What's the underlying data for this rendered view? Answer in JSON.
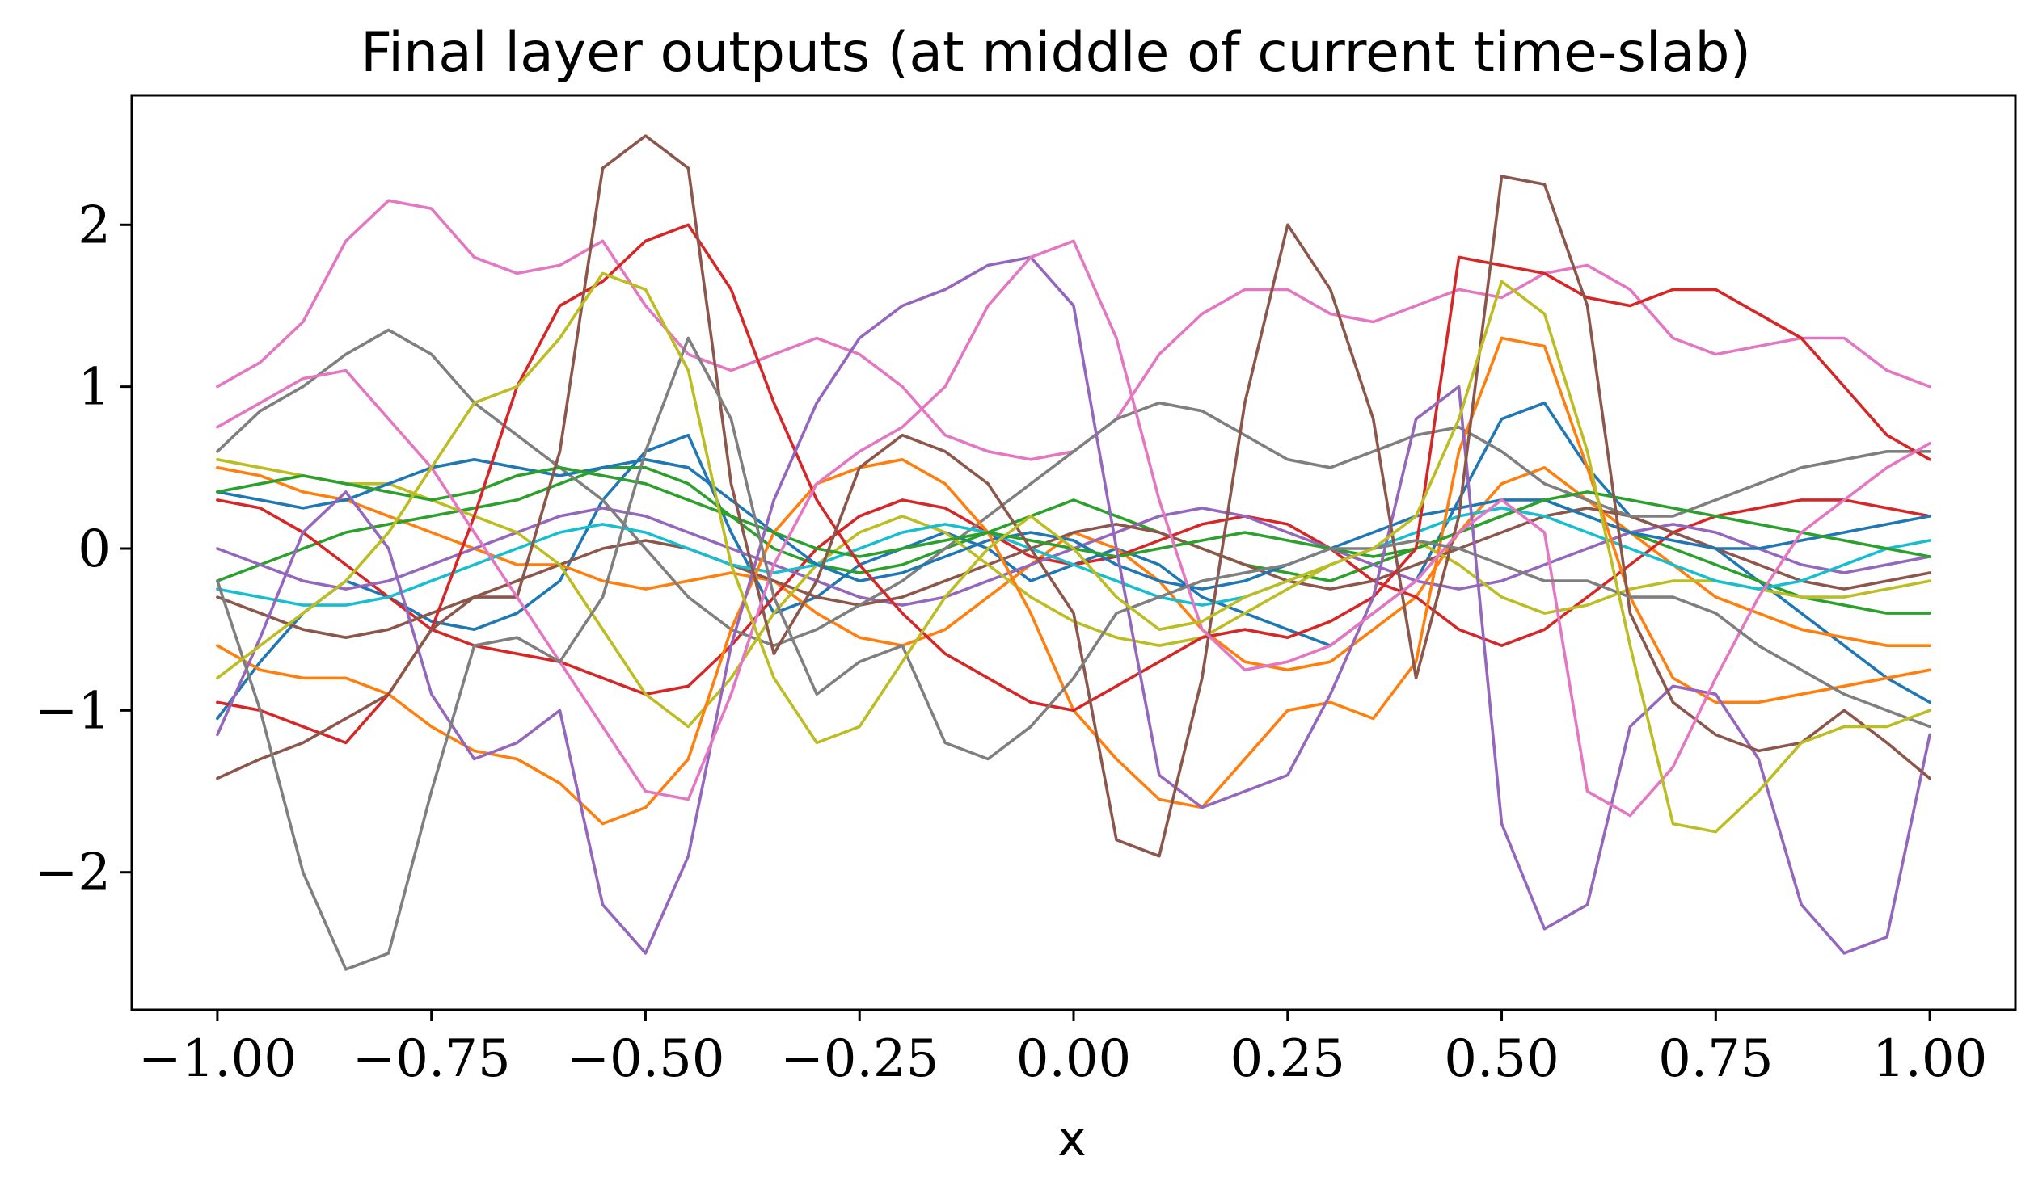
{
  "chart_data": {
    "type": "line",
    "title": "Final layer outputs (at middle of current time-slab)",
    "xlabel": "x",
    "ylabel": "",
    "xlim": [
      -1.1,
      1.1
    ],
    "ylim": [
      -2.85,
      2.8
    ],
    "xticks": [
      -1.0,
      -0.75,
      -0.5,
      -0.25,
      0.0,
      0.25,
      0.5,
      0.75,
      1.0
    ],
    "xtick_labels": [
      "−1.00",
      "−0.75",
      "−0.50",
      "−0.25",
      "0.00",
      "0.25",
      "0.50",
      "0.75",
      "1.00"
    ],
    "yticks": [
      -2,
      -1,
      0,
      1,
      2
    ],
    "ytick_labels": [
      "−2",
      "−1",
      "0",
      "1",
      "2"
    ],
    "grid": false,
    "legend": "none",
    "palette": [
      "#1f77b4",
      "#ff7f0e",
      "#2ca02c",
      "#d62728",
      "#9467bd",
      "#8c564b",
      "#e377c2",
      "#7f7f7f",
      "#bcbd22",
      "#17becf"
    ],
    "x": [
      -1.0,
      -0.95,
      -0.9,
      -0.85,
      -0.8,
      -0.75,
      -0.7,
      -0.65,
      -0.6,
      -0.55,
      -0.5,
      -0.45,
      -0.4,
      -0.35,
      -0.3,
      -0.25,
      -0.2,
      -0.15,
      -0.1,
      -0.05,
      0.0,
      0.05,
      0.1,
      0.15,
      0.2,
      0.25,
      0.3,
      0.35,
      0.4,
      0.45,
      0.5,
      0.55,
      0.6,
      0.65,
      0.7,
      0.75,
      0.8,
      0.85,
      0.9,
      0.95,
      1.0
    ],
    "series": [
      {
        "values": [
          -1.05,
          -0.7,
          -0.4,
          -0.2,
          -0.3,
          -0.45,
          -0.5,
          -0.4,
          -0.2,
          0.3,
          0.6,
          0.7,
          0.1,
          -0.4,
          -0.3,
          -0.1,
          0.0,
          0.1,
          0.0,
          -0.2,
          -0.1,
          0.0,
          -0.1,
          -0.3,
          -0.4,
          -0.5,
          -0.6,
          -0.4,
          -0.2,
          0.3,
          0.8,
          0.9,
          0.5,
          0.2,
          0.1,
          0.0,
          -0.2,
          -0.4,
          -0.6,
          -0.8,
          -0.95
        ]
      },
      {
        "values": [
          0.5,
          0.45,
          0.35,
          0.3,
          0.2,
          0.1,
          0.0,
          -0.1,
          -0.1,
          -0.2,
          -0.25,
          -0.2,
          -0.15,
          -0.2,
          -0.4,
          -0.55,
          -0.6,
          -0.5,
          -0.3,
          -0.1,
          0.1,
          0.0,
          -0.2,
          -0.5,
          -0.7,
          -0.75,
          -0.7,
          -0.5,
          -0.3,
          0.1,
          0.4,
          0.5,
          0.3,
          0.1,
          -0.1,
          -0.3,
          -0.4,
          -0.5,
          -0.55,
          -0.6,
          -0.6
        ]
      },
      {
        "values": [
          -0.2,
          -0.1,
          0.0,
          0.1,
          0.15,
          0.2,
          0.25,
          0.3,
          0.4,
          0.5,
          0.5,
          0.4,
          0.2,
          0.0,
          -0.1,
          -0.15,
          -0.1,
          0.0,
          0.1,
          0.2,
          0.3,
          0.2,
          0.1,
          0.0,
          -0.1,
          -0.15,
          -0.2,
          -0.1,
          0.0,
          0.1,
          0.2,
          0.3,
          0.2,
          0.1,
          0.0,
          -0.1,
          -0.2,
          -0.3,
          -0.35,
          -0.4,
          -0.4
        ]
      },
      {
        "values": [
          0.3,
          0.25,
          0.1,
          -0.1,
          -0.3,
          -0.5,
          -0.6,
          -0.65,
          -0.7,
          -0.8,
          -0.9,
          -0.85,
          -0.6,
          -0.3,
          0.0,
          0.2,
          0.3,
          0.25,
          0.1,
          -0.05,
          -0.1,
          -0.05,
          0.05,
          0.15,
          0.2,
          0.15,
          0.0,
          -0.2,
          -0.3,
          -0.5,
          -0.6,
          -0.5,
          -0.3,
          -0.1,
          0.1,
          0.2,
          0.25,
          0.3,
          0.3,
          0.25,
          0.2
        ]
      },
      {
        "values": [
          0.0,
          -0.1,
          -0.2,
          -0.25,
          -0.2,
          -0.1,
          0.0,
          0.1,
          0.2,
          0.25,
          0.2,
          0.1,
          0.0,
          -0.1,
          -0.2,
          -0.3,
          -0.35,
          -0.3,
          -0.2,
          -0.1,
          0.0,
          0.1,
          0.2,
          0.25,
          0.2,
          0.1,
          0.0,
          -0.1,
          -0.2,
          -0.25,
          -0.2,
          -0.1,
          0.0,
          0.1,
          0.15,
          0.1,
          0.0,
          -0.1,
          -0.15,
          -0.1,
          -0.05
        ]
      },
      {
        "values": [
          -0.3,
          -0.4,
          -0.5,
          -0.55,
          -0.5,
          -0.4,
          -0.3,
          -0.2,
          -0.1,
          0.0,
          0.05,
          0.0,
          -0.1,
          -0.2,
          -0.3,
          -0.35,
          -0.3,
          -0.2,
          -0.1,
          0.0,
          0.1,
          0.15,
          0.1,
          0.0,
          -0.1,
          -0.2,
          -0.25,
          -0.2,
          -0.1,
          0.0,
          0.1,
          0.2,
          0.25,
          0.2,
          0.1,
          0.0,
          -0.1,
          -0.2,
          -0.25,
          -0.2,
          -0.15
        ]
      },
      {
        "values": [
          1.0,
          1.15,
          1.4,
          1.9,
          2.15,
          2.1,
          1.8,
          1.7,
          1.75,
          1.9,
          1.5,
          1.2,
          1.1,
          1.2,
          1.3,
          1.2,
          1.0,
          0.7,
          0.6,
          0.55,
          0.6,
          0.8,
          1.2,
          1.45,
          1.6,
          1.6,
          1.45,
          1.4,
          1.5,
          1.6,
          1.55,
          1.7,
          1.75,
          1.6,
          1.3,
          1.2,
          1.25,
          1.3,
          1.3,
          1.1,
          1.0
        ]
      },
      {
        "values": [
          0.6,
          0.85,
          1.0,
          1.2,
          1.35,
          1.2,
          0.9,
          0.7,
          0.5,
          0.3,
          0.0,
          -0.3,
          -0.5,
          -0.6,
          -0.5,
          -0.35,
          -0.2,
          0.0,
          0.2,
          0.4,
          0.6,
          0.8,
          0.9,
          0.85,
          0.7,
          0.55,
          0.5,
          0.6,
          0.7,
          0.75,
          0.6,
          0.4,
          0.3,
          0.2,
          0.2,
          0.3,
          0.4,
          0.5,
          0.55,
          0.6,
          0.6
        ]
      },
      {
        "values": [
          0.55,
          0.5,
          0.45,
          0.4,
          0.4,
          0.3,
          0.2,
          0.1,
          -0.1,
          -0.5,
          -0.9,
          -1.1,
          -0.8,
          -0.4,
          -0.1,
          0.1,
          0.2,
          0.1,
          -0.1,
          -0.3,
          -0.45,
          -0.55,
          -0.6,
          -0.55,
          -0.4,
          -0.25,
          -0.1,
          0.0,
          0.05,
          -0.1,
          -0.3,
          -0.4,
          -0.35,
          -0.25,
          -0.2,
          -0.2,
          -0.25,
          -0.3,
          -0.3,
          -0.25,
          -0.2
        ]
      },
      {
        "values": [
          -0.25,
          -0.3,
          -0.35,
          -0.35,
          -0.3,
          -0.2,
          -0.1,
          0.0,
          0.1,
          0.15,
          0.1,
          0.0,
          -0.1,
          -0.15,
          -0.1,
          0.0,
          0.1,
          0.15,
          0.1,
          0.0,
          -0.1,
          -0.2,
          -0.3,
          -0.35,
          -0.3,
          -0.2,
          -0.1,
          0.0,
          0.1,
          0.2,
          0.25,
          0.2,
          0.1,
          0.0,
          -0.1,
          -0.2,
          -0.25,
          -0.2,
          -0.1,
          0.0,
          0.05
        ]
      },
      {
        "values": [
          0.35,
          0.3,
          0.25,
          0.3,
          0.4,
          0.5,
          0.55,
          0.5,
          0.45,
          0.5,
          0.55,
          0.5,
          0.3,
          0.1,
          -0.1,
          -0.2,
          -0.15,
          -0.05,
          0.05,
          0.1,
          0.05,
          -0.1,
          -0.2,
          -0.25,
          -0.2,
          -0.1,
          0.0,
          0.1,
          0.2,
          0.25,
          0.3,
          0.3,
          0.2,
          0.1,
          0.05,
          0.0,
          0.0,
          0.05,
          0.1,
          0.15,
          0.2
        ]
      },
      {
        "values": [
          -0.6,
          -0.75,
          -0.8,
          -0.8,
          -0.9,
          -1.1,
          -1.25,
          -1.3,
          -1.45,
          -1.7,
          -1.6,
          -1.3,
          -0.5,
          0.1,
          0.4,
          0.5,
          0.55,
          0.4,
          0.1,
          -0.4,
          -1.0,
          -1.3,
          -1.55,
          -1.6,
          -1.3,
          -1.0,
          -0.95,
          -1.05,
          -0.7,
          0.6,
          1.3,
          1.25,
          0.5,
          -0.3,
          -0.8,
          -0.95,
          -0.95,
          -0.9,
          -0.85,
          -0.8,
          -0.75
        ]
      },
      {
        "values": [
          0.35,
          0.4,
          0.45,
          0.4,
          0.35,
          0.3,
          0.35,
          0.45,
          0.5,
          0.45,
          0.4,
          0.3,
          0.2,
          0.1,
          0.0,
          -0.05,
          0.0,
          0.05,
          0.1,
          0.05,
          0.0,
          -0.05,
          0.0,
          0.05,
          0.1,
          0.05,
          0.0,
          -0.05,
          0.0,
          0.1,
          0.2,
          0.3,
          0.35,
          0.3,
          0.25,
          0.2,
          0.15,
          0.1,
          0.05,
          0.0,
          -0.05
        ]
      },
      {
        "values": [
          -0.95,
          -1.0,
          -1.1,
          -1.2,
          -0.9,
          -0.5,
          0.2,
          1.0,
          1.5,
          1.65,
          1.9,
          2.0,
          1.6,
          0.9,
          0.3,
          -0.1,
          -0.4,
          -0.65,
          -0.8,
          -0.95,
          -1.0,
          -0.85,
          -0.7,
          -0.55,
          -0.5,
          -0.55,
          -0.45,
          -0.3,
          0.0,
          1.8,
          1.75,
          1.7,
          1.55,
          1.5,
          1.6,
          1.6,
          1.45,
          1.3,
          1.0,
          0.7,
          0.55
        ]
      },
      {
        "values": [
          -1.15,
          -0.55,
          0.1,
          0.35,
          0.0,
          -0.9,
          -1.3,
          -1.2,
          -1.0,
          -2.2,
          -2.5,
          -1.9,
          -0.6,
          0.3,
          0.9,
          1.3,
          1.5,
          1.6,
          1.75,
          1.8,
          1.5,
          0.0,
          -1.4,
          -1.6,
          -1.5,
          -1.4,
          -0.9,
          -0.3,
          0.8,
          1.0,
          -1.7,
          -2.35,
          -2.2,
          -1.1,
          -0.85,
          -0.9,
          -1.3,
          -2.2,
          -2.5,
          -2.4,
          -1.15
        ]
      },
      {
        "values": [
          -1.42,
          -1.3,
          -1.2,
          -1.05,
          -0.9,
          -0.5,
          -0.3,
          -0.3,
          0.6,
          2.35,
          2.55,
          2.35,
          0.4,
          -0.65,
          -0.2,
          0.5,
          0.7,
          0.6,
          0.4,
          0.0,
          -0.4,
          -1.8,
          -1.9,
          -0.8,
          0.9,
          2.0,
          1.6,
          0.8,
          -0.8,
          0.2,
          2.3,
          2.25,
          1.5,
          -0.4,
          -0.95,
          -1.15,
          -1.25,
          -1.2,
          -1.0,
          -1.2,
          -1.42
        ]
      },
      {
        "values": [
          0.75,
          0.9,
          1.05,
          1.1,
          0.8,
          0.5,
          0.1,
          -0.3,
          -0.7,
          -1.1,
          -1.5,
          -1.55,
          -0.9,
          -0.1,
          0.4,
          0.6,
          0.75,
          1.0,
          1.5,
          1.8,
          1.9,
          1.3,
          0.3,
          -0.5,
          -0.75,
          -0.7,
          -0.6,
          -0.4,
          -0.2,
          0.1,
          0.3,
          0.1,
          -1.5,
          -1.65,
          -1.35,
          -0.8,
          -0.3,
          0.1,
          0.3,
          0.5,
          0.65
        ]
      },
      {
        "values": [
          -0.2,
          -1.0,
          -2.0,
          -2.6,
          -2.5,
          -1.5,
          -0.6,
          -0.55,
          -0.7,
          -0.3,
          0.6,
          1.3,
          0.8,
          -0.3,
          -0.9,
          -0.7,
          -0.6,
          -1.2,
          -1.3,
          -1.1,
          -0.8,
          -0.4,
          -0.3,
          -0.2,
          -0.15,
          -0.1,
          0.0,
          0.0,
          0.05,
          0.0,
          -0.1,
          -0.2,
          -0.2,
          -0.3,
          -0.3,
          -0.4,
          -0.6,
          -0.75,
          -0.9,
          -1.0,
          -1.1
        ]
      },
      {
        "values": [
          -0.8,
          -0.6,
          -0.4,
          -0.2,
          0.1,
          0.5,
          0.9,
          1.0,
          1.3,
          1.7,
          1.6,
          1.1,
          -0.1,
          -0.8,
          -1.2,
          -1.1,
          -0.7,
          -0.3,
          0.0,
          0.2,
          0.0,
          -0.3,
          -0.5,
          -0.45,
          -0.3,
          -0.2,
          -0.1,
          0.0,
          0.2,
          0.8,
          1.65,
          1.45,
          0.6,
          -0.6,
          -1.7,
          -1.75,
          -1.5,
          -1.2,
          -1.1,
          -1.1,
          -1.0
        ]
      }
    ]
  }
}
